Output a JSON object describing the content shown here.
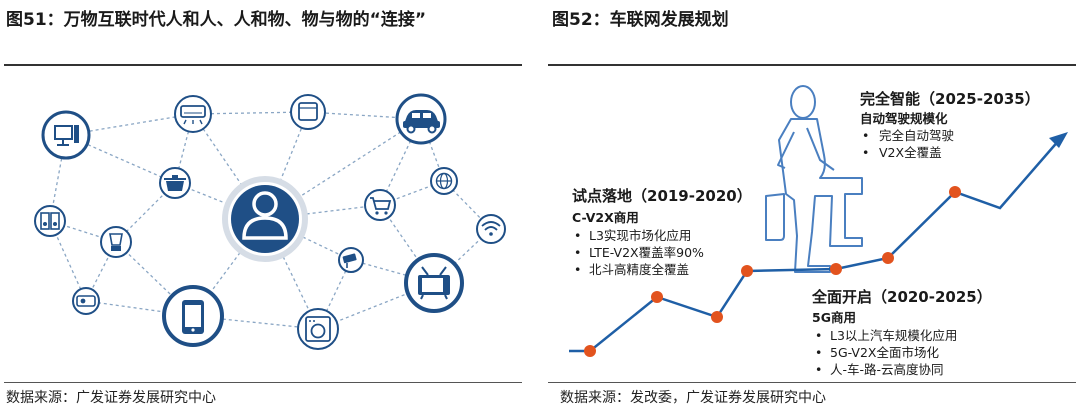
{
  "left": {
    "figure_title": "图51：万物互联时代人和人、人和物、物与物的“连接”",
    "source": "数据来源：广发证券发展研究中心"
  },
  "right": {
    "figure_title": "图52：车联网发展规划",
    "source": "数据来源：发改委，广发证券发展研究中心",
    "stages": [
      {
        "title": "试点落地（2019-2020）",
        "subtitle": "C-V2X商用",
        "bullets": [
          "L3实现市场化应用",
          "LTE-V2X覆盖率90%",
          "北斗高精度全覆盖"
        ]
      },
      {
        "title": "全面开启（2020-2025）",
        "subtitle": "5G商用",
        "bullets": [
          "L3以上汽车规模化应用",
          "5G-V2X全面市场化",
          "人-车-路-云高度协同"
        ]
      },
      {
        "title": "完全智能（2025-2035）",
        "subtitle": "自动驾驶规模化",
        "bullets": [
          "完全自动驾驶",
          "V2X全覆盖"
        ]
      }
    ],
    "colors": {
      "line": "#1f5fa6",
      "dot": "#e2531e",
      "figure": "#4a7fc0"
    }
  },
  "network": {
    "colors": {
      "hub": "#1f4f86",
      "icon": "#1f4f86",
      "edge": "#8aa6c4",
      "ring": "#d6dde6"
    },
    "icons": [
      "monitor-icon",
      "ac-unit-icon",
      "fridge-icon",
      "car-icon",
      "pot-icon",
      "user-icon",
      "cart-icon",
      "globe-icon",
      "speaker-icon",
      "blender-icon",
      "camera-icon",
      "wifi-icon",
      "tv-icon",
      "projector-icon",
      "phone-icon",
      "washer-icon"
    ]
  }
}
